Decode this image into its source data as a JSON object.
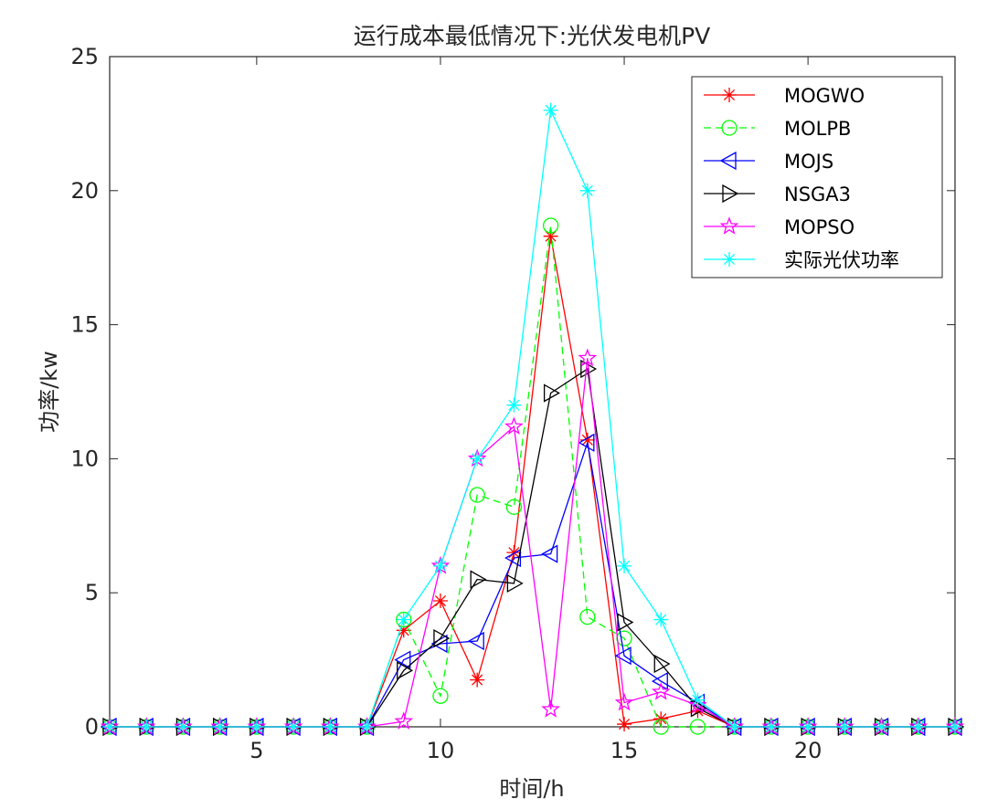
{
  "chart_data": {
    "type": "line",
    "title": "运行成本最低情况下:光伏发电机PV",
    "xlabel": "时间/h",
    "ylabel": "功率/kw",
    "xlim": [
      1,
      24
    ],
    "ylim": [
      0,
      25
    ],
    "xticks": [
      5,
      10,
      15,
      20
    ],
    "yticks": [
      0,
      5,
      10,
      15,
      20,
      25
    ],
    "grid": false,
    "legend_position": "top-right",
    "x": [
      1,
      2,
      3,
      4,
      5,
      6,
      7,
      8,
      9,
      10,
      11,
      12,
      13,
      14,
      15,
      16,
      17,
      18,
      19,
      20,
      21,
      22,
      23,
      24
    ],
    "series": [
      {
        "name": "MOGWO",
        "color": "#ff0000",
        "line_style": "solid",
        "marker": "asterisk",
        "values": [
          0,
          0,
          0,
          0,
          0,
          0,
          0,
          0,
          3.6,
          4.7,
          1.75,
          6.5,
          18.3,
          10.7,
          0.1,
          0.3,
          0.6,
          0,
          0,
          0,
          0,
          0,
          0,
          0
        ]
      },
      {
        "name": "MOLPB",
        "color": "#00ff00",
        "line_style": "dashed",
        "marker": "circle",
        "values": [
          0,
          0,
          0,
          0,
          0,
          0,
          0,
          0,
          4.0,
          1.15,
          8.65,
          8.2,
          18.7,
          4.1,
          3.3,
          0.0,
          0.0,
          0,
          0,
          0,
          0,
          0,
          0,
          0
        ]
      },
      {
        "name": "MOJS",
        "color": "#0000ff",
        "line_style": "solid",
        "marker": "triangle-left",
        "values": [
          0,
          0,
          0,
          0,
          0,
          0,
          0,
          0,
          2.5,
          3.1,
          3.2,
          6.3,
          6.45,
          10.6,
          2.65,
          1.7,
          0.9,
          0,
          0,
          0,
          0,
          0,
          0,
          0
        ]
      },
      {
        "name": "NSGA3",
        "color": "#000000",
        "line_style": "solid",
        "marker": "triangle-right",
        "values": [
          0,
          0,
          0,
          0,
          0,
          0,
          0,
          0,
          2.1,
          3.3,
          5.5,
          5.35,
          12.45,
          13.35,
          3.9,
          2.35,
          0.7,
          0,
          0,
          0,
          0,
          0,
          0,
          0
        ]
      },
      {
        "name": "MOPSO",
        "color": "#ff00ff",
        "line_style": "solid",
        "marker": "pentagram",
        "values": [
          0,
          0,
          0,
          0,
          0,
          0,
          0,
          0,
          0.2,
          6.0,
          10.0,
          11.2,
          0.65,
          13.75,
          0.9,
          1.3,
          0.8,
          0,
          0,
          0,
          0,
          0,
          0,
          0
        ]
      },
      {
        "name": "实际光伏功率",
        "color": "#00ffff",
        "line_style": "solid",
        "marker": "asterisk",
        "values": [
          0,
          0,
          0,
          0,
          0,
          0,
          0,
          0,
          4.0,
          6.0,
          10.0,
          12.0,
          23.0,
          20.0,
          6.0,
          4.0,
          1.0,
          0,
          0,
          0,
          0,
          0,
          0,
          0
        ]
      }
    ]
  }
}
